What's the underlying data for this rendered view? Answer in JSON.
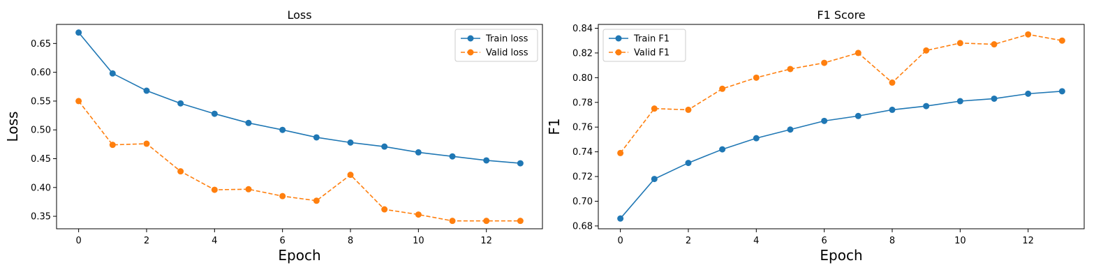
{
  "chart_data": [
    {
      "type": "line",
      "title": "Loss",
      "xlabel": "Epoch",
      "ylabel": "Loss",
      "xlim": [
        -0.65,
        13.65
      ],
      "ylim": [
        0.3283,
        0.6831
      ],
      "xticks": [
        0,
        2,
        4,
        6,
        8,
        10,
        12
      ],
      "xtick_labels": [
        "0",
        "2",
        "4",
        "6",
        "8",
        "10",
        "12"
      ],
      "yticks": [
        0.35,
        0.4,
        0.45,
        0.5,
        0.55,
        0.6,
        0.65
      ],
      "ytick_labels": [
        "0.35",
        "0.40",
        "0.45",
        "0.50",
        "0.55",
        "0.60",
        "0.65"
      ],
      "grid": false,
      "legend_position": "top-right",
      "x": [
        0,
        1,
        2,
        3,
        4,
        5,
        6,
        7,
        8,
        9,
        10,
        11,
        12,
        13
      ],
      "series": [
        {
          "name": "Train loss",
          "color": "#1f77b4",
          "dashed": false,
          "values": [
            0.669,
            0.598,
            0.568,
            0.546,
            0.528,
            0.512,
            0.5,
            0.487,
            0.478,
            0.471,
            0.461,
            0.454,
            0.447,
            0.442
          ]
        },
        {
          "name": "Valid loss",
          "color": "#ff7f0e",
          "dashed": true,
          "values": [
            0.55,
            0.474,
            0.476,
            0.428,
            0.396,
            0.397,
            0.385,
            0.377,
            0.422,
            0.362,
            0.353,
            0.342,
            0.342,
            0.342
          ]
        }
      ]
    },
    {
      "type": "line",
      "title": "F1 Score",
      "xlabel": "Epoch",
      "ylabel": "F1",
      "xlim": [
        -0.65,
        13.65
      ],
      "ylim": [
        0.6777,
        0.8431
      ],
      "xticks": [
        0,
        2,
        4,
        6,
        8,
        10,
        12
      ],
      "xtick_labels": [
        "0",
        "2",
        "4",
        "6",
        "8",
        "10",
        "12"
      ],
      "yticks": [
        0.68,
        0.7,
        0.72,
        0.74,
        0.76,
        0.78,
        0.8,
        0.82,
        0.84
      ],
      "ytick_labels": [
        "0.68",
        "0.70",
        "0.72",
        "0.74",
        "0.76",
        "0.78",
        "0.80",
        "0.82",
        "0.84"
      ],
      "grid": false,
      "legend_position": "top-left",
      "x": [
        0,
        1,
        2,
        3,
        4,
        5,
        6,
        7,
        8,
        9,
        10,
        11,
        12,
        13
      ],
      "series": [
        {
          "name": "Train F1",
          "color": "#1f77b4",
          "dashed": false,
          "values": [
            0.686,
            0.718,
            0.731,
            0.742,
            0.751,
            0.758,
            0.765,
            0.769,
            0.774,
            0.777,
            0.781,
            0.783,
            0.787,
            0.789
          ]
        },
        {
          "name": "Valid F1",
          "color": "#ff7f0e",
          "dashed": true,
          "values": [
            0.739,
            0.775,
            0.774,
            0.791,
            0.8,
            0.807,
            0.812,
            0.82,
            0.796,
            0.822,
            0.828,
            0.827,
            0.835,
            0.83
          ]
        }
      ]
    }
  ]
}
